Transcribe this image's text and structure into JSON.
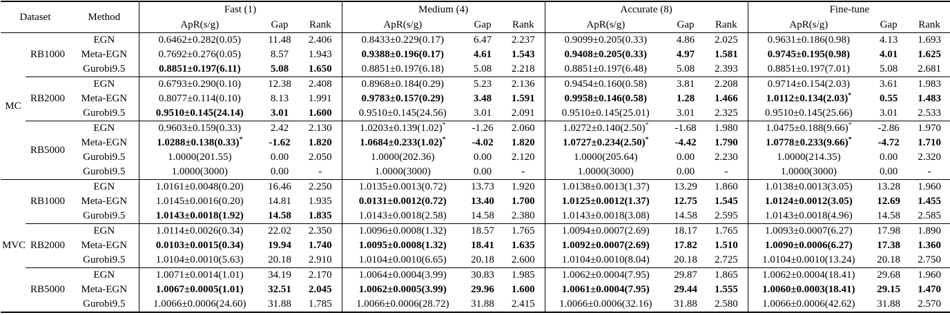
{
  "table": {
    "header": {
      "dataset_label": "Dataset",
      "method_label": "Method",
      "groups": [
        "Fast (1)",
        "Medium (4)",
        "Accurate (8)",
        "Fine-tune"
      ],
      "subcols": [
        "ApR(s/g)",
        "Gap",
        "Rank"
      ]
    },
    "sections": [
      {
        "label": "MC",
        "blocks": [
          {
            "dataset": "RB1000",
            "rows": [
              {
                "method": "EGN",
                "cells": [
                  {
                    "apr": "0.6462±0.282(0.05)",
                    "gap": "11.48",
                    "rank": "2.406"
                  },
                  {
                    "apr": "0.8433±0.229(0.17)",
                    "gap": "6.47",
                    "rank": "2.237"
                  },
                  {
                    "apr": "0.9099±0.205(0.33)",
                    "gap": "4.86",
                    "rank": "2.025"
                  },
                  {
                    "apr": "0.9631±0.186(0.98)",
                    "gap": "4.13",
                    "rank": "1.693"
                  }
                ]
              },
              {
                "method": "Meta-EGN",
                "cells": [
                  {
                    "apr": "0.7692±0.276(0.05)",
                    "gap": "8.57",
                    "rank": "1.943"
                  },
                  {
                    "apr": "0.9388±0.196(0.17)",
                    "gap": "4.61",
                    "rank": "1.543",
                    "bold": true
                  },
                  {
                    "apr": "0.9408±0.205(0.33)",
                    "gap": "4.97",
                    "rank": "1.581",
                    "bold": true
                  },
                  {
                    "apr": "0.9745±0.195(0.98)",
                    "gap": "4.01",
                    "rank": "1.625",
                    "bold": true
                  }
                ]
              },
              {
                "method": "Gurobi9.5",
                "cells": [
                  {
                    "apr": "0.8851±0.197(6.11)",
                    "gap": "5.08",
                    "rank": "1.650",
                    "bold": true
                  },
                  {
                    "apr": "0.8851±0.197(6.18)",
                    "gap": "5.08",
                    "rank": "2.218"
                  },
                  {
                    "apr": "0.8851±0.197(6.48)",
                    "gap": "5.08",
                    "rank": "2.393"
                  },
                  {
                    "apr": "0.8851±0.197(7.01)",
                    "gap": "5.08",
                    "rank": "2.681"
                  }
                ]
              }
            ]
          },
          {
            "dataset": "RB2000",
            "rows": [
              {
                "method": "EGN",
                "cells": [
                  {
                    "apr": "0.6793±0.290(0.10)",
                    "gap": "12.38",
                    "rank": "2.408"
                  },
                  {
                    "apr": "0.8968±0.184(0.29)",
                    "gap": "5.23",
                    "rank": "2.136"
                  },
                  {
                    "apr": "0.9454±0.160(0.58)",
                    "gap": "3.81",
                    "rank": "2.208"
                  },
                  {
                    "apr": "0.9714±0.154(2.03)",
                    "gap": "3.61",
                    "rank": "1.983"
                  }
                ]
              },
              {
                "method": "Meta-EGN",
                "cells": [
                  {
                    "apr": "0.8077±0.114(0.10)",
                    "gap": "8.13",
                    "rank": "1.991"
                  },
                  {
                    "apr": "0.9783±0.157(0.29)",
                    "gap": "3.48",
                    "rank": "1.591",
                    "bold": true
                  },
                  {
                    "apr": "0.9958±0.146(0.58)",
                    "gap": "1.28",
                    "rank": "1.466",
                    "bold": true
                  },
                  {
                    "apr": "1.0112±0.134(2.03)",
                    "gap": "0.55",
                    "rank": "1.483",
                    "bold": true,
                    "star": true
                  }
                ]
              },
              {
                "method": "Gurobi9.5",
                "cells": [
                  {
                    "apr": "0.9510±0.145(24.14)",
                    "gap": "3.01",
                    "rank": "1.600",
                    "bold": true
                  },
                  {
                    "apr": "0.9510±0.145(24.56)",
                    "gap": "3.01",
                    "rank": "2.091"
                  },
                  {
                    "apr": "0.9510±0.145(25.01)",
                    "gap": "3.01",
                    "rank": "2.325"
                  },
                  {
                    "apr": "0.9510±0.145(25.66)",
                    "gap": "3.01",
                    "rank": "2.533"
                  }
                ]
              }
            ]
          },
          {
            "dataset": "RB5000",
            "rows": [
              {
                "method": "EGN",
                "cells": [
                  {
                    "apr": "0.9603±0.159(0.33)",
                    "gap": "2.42",
                    "rank": "2.130"
                  },
                  {
                    "apr": "1.0203±0.139(1.02)",
                    "gap": "-1.26",
                    "rank": "2.060",
                    "star": true
                  },
                  {
                    "apr": "1.0272±0.140(2.50)",
                    "gap": "-1.68",
                    "rank": "1.980",
                    "star": true
                  },
                  {
                    "apr": "1.0475±0.188(9.66)",
                    "gap": "-2.86",
                    "rank": "1.970",
                    "star": true
                  }
                ]
              },
              {
                "method": "Meta-EGN",
                "cells": [
                  {
                    "apr": "1.0288±0.138(0.33)",
                    "gap": "-1.62",
                    "rank": "1.820",
                    "bold": true,
                    "star": true
                  },
                  {
                    "apr": "1.0684±0.233(1.02)",
                    "gap": "-4.02",
                    "rank": "1.820",
                    "bold": true,
                    "star": true
                  },
                  {
                    "apr": "1.0727±0.234(2.50)",
                    "gap": "-4.42",
                    "rank": "1.790",
                    "bold": true,
                    "star": true
                  },
                  {
                    "apr": "1.0778±0.233(9.66)",
                    "gap": "-4.72",
                    "rank": "1.710",
                    "bold": true,
                    "star": true
                  }
                ]
              },
              {
                "method": "Gurobi9.5",
                "cells": [
                  {
                    "apr": "1.0000(201.55)",
                    "gap": "0.00",
                    "rank": "2.050"
                  },
                  {
                    "apr": "1.0000(202.36)",
                    "gap": "0.00",
                    "rank": "2.120"
                  },
                  {
                    "apr": "1.0000(205.64)",
                    "gap": "0.00",
                    "rank": "2.230"
                  },
                  {
                    "apr": "1.0000(214.35)",
                    "gap": "0.00",
                    "rank": "2.320"
                  }
                ]
              },
              {
                "method": "Gurobi9.5",
                "cells": [
                  {
                    "apr": "1.0000(3000)",
                    "gap": "0.00",
                    "rank": "-"
                  },
                  {
                    "apr": "1.0000(3000)",
                    "gap": "0.00",
                    "rank": "-"
                  },
                  {
                    "apr": "1.0000(3000)",
                    "gap": "0.00",
                    "rank": "-"
                  },
                  {
                    "apr": "1.0000(3000)",
                    "gap": "0.00",
                    "rank": "-"
                  }
                ]
              }
            ]
          }
        ]
      },
      {
        "label": "MVC",
        "blocks": [
          {
            "dataset": "RB1000",
            "rows": [
              {
                "method": "EGN",
                "cells": [
                  {
                    "apr": "1.0161±0.0048(0.20)",
                    "gap": "16.46",
                    "rank": "2.250"
                  },
                  {
                    "apr": "1.0135±0.0013(0.72)",
                    "gap": "13.73",
                    "rank": "1.920"
                  },
                  {
                    "apr": "1.0138±0.0013(1.37)",
                    "gap": "13.29",
                    "rank": "1.860"
                  },
                  {
                    "apr": "1.0138±0.0013(3.05)",
                    "gap": "13.28",
                    "rank": "1.960"
                  }
                ]
              },
              {
                "method": "Meta-EGN",
                "cells": [
                  {
                    "apr": "1.0145±0.0016(0.20)",
                    "gap": "14.81",
                    "rank": "1.935"
                  },
                  {
                    "apr": "0.0131±0.0012(0.72)",
                    "gap": "13.40",
                    "rank": "1.700",
                    "bold": true
                  },
                  {
                    "apr": "1.0125±0.0012(1.37)",
                    "gap": "12.75",
                    "rank": "1.545",
                    "bold": true
                  },
                  {
                    "apr": "1.0124±0.0012(3.05)",
                    "gap": "12.69",
                    "rank": "1.455",
                    "bold": true
                  }
                ]
              },
              {
                "method": "Gurobi9.5",
                "cells": [
                  {
                    "apr": "1.0143±0.0018(1.92)",
                    "gap": "14.58",
                    "rank": "1.835",
                    "bold": true
                  },
                  {
                    "apr": "1.0143±0.0018(2.58)",
                    "gap": "14.58",
                    "rank": "2.380"
                  },
                  {
                    "apr": "1.0143±0.0018(3.08)",
                    "gap": "14.58",
                    "rank": "2.595"
                  },
                  {
                    "apr": "1.0143±0.0018(4.96)",
                    "gap": "14.58",
                    "rank": "2.585"
                  }
                ]
              }
            ]
          },
          {
            "dataset": "RB2000",
            "rows": [
              {
                "method": "EGN",
                "cells": [
                  {
                    "apr": "1.0114±0.0026(0.34)",
                    "gap": "22.02",
                    "rank": "2.350"
                  },
                  {
                    "apr": "1.0096±0.0008(1.32)",
                    "gap": "18.57",
                    "rank": "1.765"
                  },
                  {
                    "apr": "1.0094±0.0007(2.69)",
                    "gap": "18.17",
                    "rank": "1.765"
                  },
                  {
                    "apr": "1.0093±0.0007(6.27)",
                    "gap": "17.98",
                    "rank": "1.890"
                  }
                ]
              },
              {
                "method": "Meta-EGN",
                "cells": [
                  {
                    "apr": "0.0103±0.0015(0.34)",
                    "gap": "19.94",
                    "rank": "1.740",
                    "bold": true
                  },
                  {
                    "apr": "1.0095±0.0008(1.32)",
                    "gap": "18.41",
                    "rank": "1.635",
                    "bold": true
                  },
                  {
                    "apr": "1.0092±0.0007(2.69)",
                    "gap": "17.82",
                    "rank": "1.510",
                    "bold": true
                  },
                  {
                    "apr": "1.0090±0.0006(6.27)",
                    "gap": "17.38",
                    "rank": "1.360",
                    "bold": true
                  }
                ]
              },
              {
                "method": "Gurobi9.5",
                "cells": [
                  {
                    "apr": "1.0104±0.0010(5.63)",
                    "gap": "20.18",
                    "rank": "2.910"
                  },
                  {
                    "apr": "1.0104±0.0010(6.65)",
                    "gap": "20.18",
                    "rank": "2.600"
                  },
                  {
                    "apr": "1.0104±0.0010(8.04)",
                    "gap": "20.18",
                    "rank": "2.725"
                  },
                  {
                    "apr": "1.0104±0.0010(13.24)",
                    "gap": "20.18",
                    "rank": "2.750"
                  }
                ]
              }
            ]
          },
          {
            "dataset": "RB5000",
            "rows": [
              {
                "method": "EGN",
                "cells": [
                  {
                    "apr": "1.0071±0.0014(1.01)",
                    "gap": "34.19",
                    "rank": "2.170"
                  },
                  {
                    "apr": "1.0064±0.0004(3.99)",
                    "gap": "30.83",
                    "rank": "1.985"
                  },
                  {
                    "apr": "1.0062±0.0004(7.95)",
                    "gap": "29.87",
                    "rank": "1.865"
                  },
                  {
                    "apr": "1.0062±0.0004(18.41)",
                    "gap": "29.68",
                    "rank": "1.960"
                  }
                ]
              },
              {
                "method": "Meta-EGN",
                "cells": [
                  {
                    "apr": "1.0067±0.0005(1.01)",
                    "gap": "32.51",
                    "rank": "2.045",
                    "bold": true
                  },
                  {
                    "apr": "1.0062±0.0005(3.99)",
                    "gap": "29.96",
                    "rank": "1.600",
                    "bold": true
                  },
                  {
                    "apr": "1.0061±0.0004(7.95)",
                    "gap": "29.44",
                    "rank": "1.555",
                    "bold": true
                  },
                  {
                    "apr": "1.0060±0.0003(18.41)",
                    "gap": "29.15",
                    "rank": "1.470",
                    "bold": true
                  }
                ]
              },
              {
                "method": "Gurobi9.5",
                "cells": [
                  {
                    "apr": "1.0066±0.0006(24.60)",
                    "gap": "31.88",
                    "rank": "1.785"
                  },
                  {
                    "apr": "1.0066±0.0006(28.72)",
                    "gap": "31.88",
                    "rank": "2.415"
                  },
                  {
                    "apr": "1.0066±0.0006(32.16)",
                    "gap": "31.88",
                    "rank": "2.580"
                  },
                  {
                    "apr": "1.0066±0.0006(42.62)",
                    "gap": "31.88",
                    "rank": "2.570"
                  }
                ]
              }
            ]
          }
        ]
      }
    ]
  }
}
